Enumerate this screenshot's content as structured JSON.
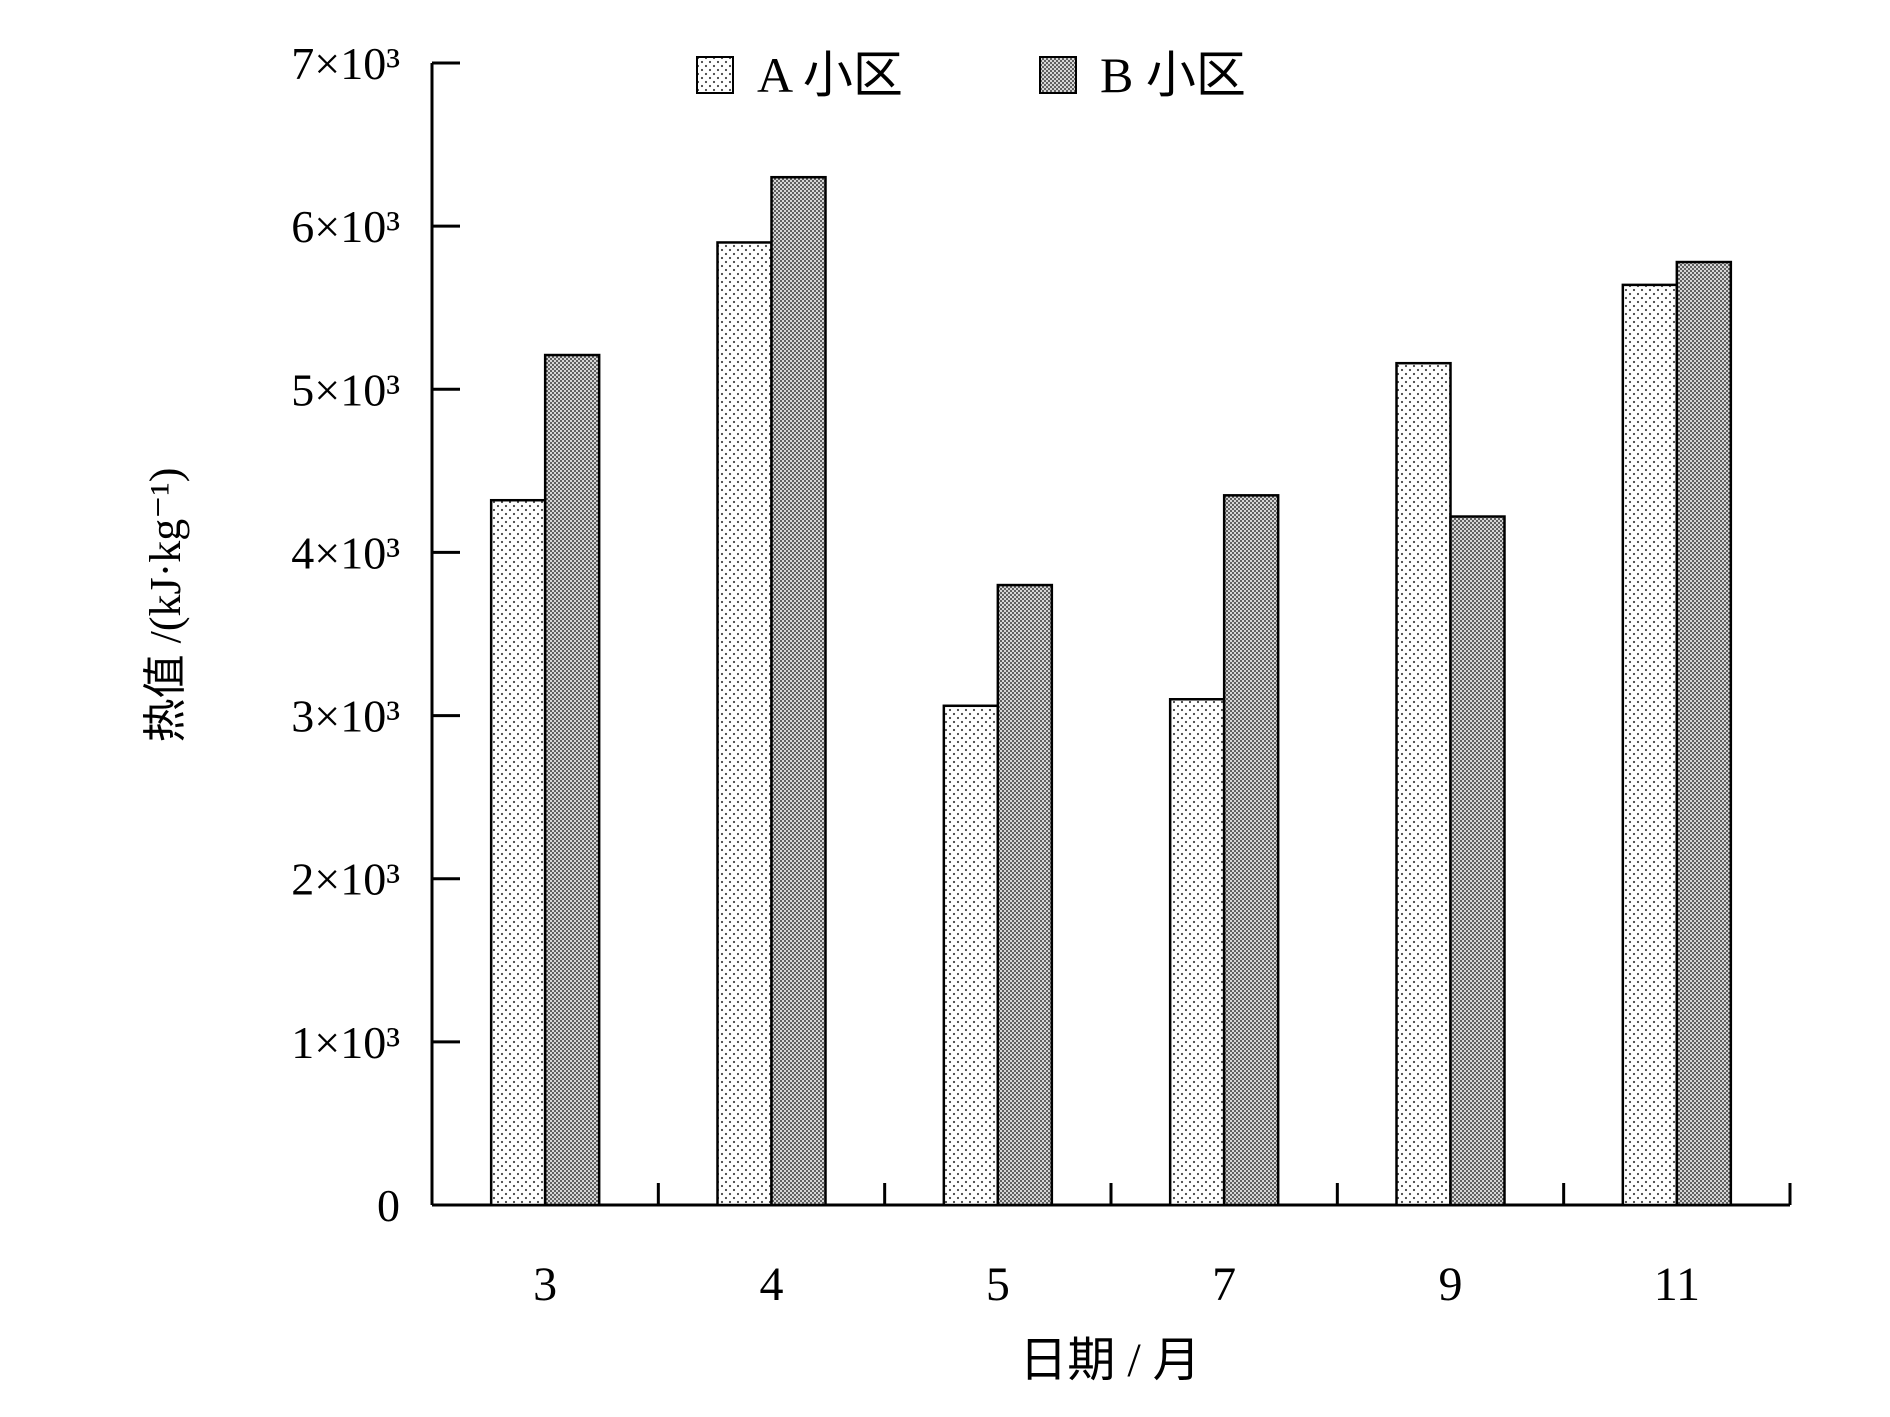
{
  "chart_data": {
    "type": "bar",
    "categories": [
      "3",
      "4",
      "5",
      "7",
      "9",
      "11"
    ],
    "series": [
      {
        "name": "A 小区",
        "values": [
          4320,
          5900,
          3060,
          3100,
          5160,
          5640
        ],
        "pattern": "dots-light"
      },
      {
        "name": "B 小区",
        "values": [
          5210,
          6300,
          3800,
          4350,
          4220,
          5780
        ],
        "pattern": "dots-dense"
      }
    ],
    "xlabel": "日期 / 月",
    "ylabel": "热值 /(kJ·kg⁻¹)",
    "ylim": [
      0,
      7000
    ],
    "yticks": [
      {
        "value": 0,
        "label": "0"
      },
      {
        "value": 1000,
        "label": "1×10³"
      },
      {
        "value": 2000,
        "label": "2×10³"
      },
      {
        "value": 3000,
        "label": "3×10³"
      },
      {
        "value": 4000,
        "label": "4×10³"
      },
      {
        "value": 5000,
        "label": "5×10³"
      },
      {
        "value": 6000,
        "label": "6×10³"
      },
      {
        "value": 7000,
        "label": "7×10³"
      }
    ],
    "grid": false,
    "legend_position": "top"
  }
}
